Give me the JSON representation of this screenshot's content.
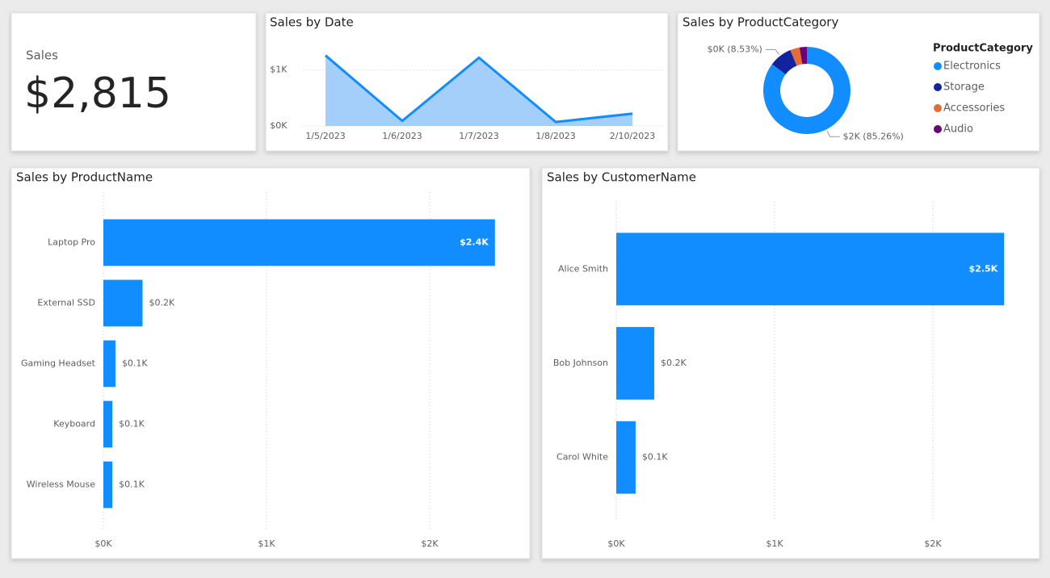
{
  "card": {
    "label": "Sales",
    "value": "$2,815"
  },
  "chart_data": [
    {
      "type": "area",
      "title": "Sales by Date",
      "categories": [
        "1/5/2023",
        "1/6/2023",
        "1/7/2023",
        "1/8/2023",
        "2/10/2023"
      ],
      "values": [
        1260,
        90,
        1220,
        70,
        220
      ],
      "color": "#118dff",
      "fill": "#a3cffa",
      "ylim": [
        0,
        1400
      ],
      "yticks": [
        {
          "value": 0,
          "label": "$0K"
        },
        {
          "value": 1000,
          "label": "$1K"
        }
      ],
      "grid": true
    },
    {
      "type": "donut",
      "title": "Sales by ProductCategory",
      "categories": [
        "Electronics",
        "Storage",
        "Accessories",
        "Audio"
      ],
      "values": [
        85.26,
        8.53,
        3.5,
        2.71
      ],
      "value_labels": [
        "$2K (85.26%)",
        "$0K (8.53%)",
        null,
        null
      ],
      "colors": [
        "#118dff",
        "#12239e",
        "#e66c37",
        "#6b007b"
      ],
      "legend_title": "ProductCategory",
      "legend": "right"
    },
    {
      "type": "hbar",
      "title": "Sales by ProductName",
      "categories": [
        "Laptop Pro",
        "External SSD",
        "Gaming Headset",
        "Keyboard",
        "Wireless Mouse"
      ],
      "values": [
        2400,
        240,
        74,
        55,
        55
      ],
      "value_labels": [
        "$2.4K",
        "$0.2K",
        "$0.1K",
        "$0.1K",
        "$0.1K"
      ],
      "color": "#118dff",
      "xlim": [
        0,
        2500
      ],
      "xticks": [
        {
          "value": 0,
          "label": "$0K"
        },
        {
          "value": 1000,
          "label": "$1K"
        },
        {
          "value": 2000,
          "label": "$2K"
        }
      ],
      "grid": true
    },
    {
      "type": "hbar",
      "title": "Sales by CustomerName",
      "categories": [
        "Alice Smith",
        "Bob Johnson",
        "Carol White"
      ],
      "values": [
        2450,
        240,
        122
      ],
      "value_labels": [
        "$2.5K",
        "$0.2K",
        "$0.1K"
      ],
      "color": "#118dff",
      "xlim": [
        0,
        2550
      ],
      "xticks": [
        {
          "value": 0,
          "label": "$0K"
        },
        {
          "value": 1000,
          "label": "$1K"
        },
        {
          "value": 2000,
          "label": "$2K"
        }
      ],
      "grid": true
    }
  ]
}
